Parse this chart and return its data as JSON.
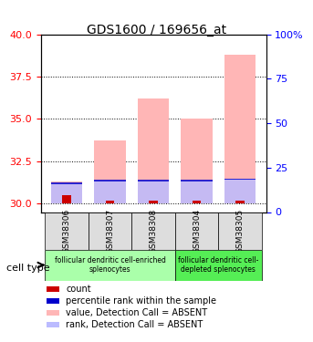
{
  "title": "GDS1600 / 169656_at",
  "samples": [
    "GSM38306",
    "GSM38307",
    "GSM38308",
    "GSM38304",
    "GSM38305"
  ],
  "ylim_left": [
    29.5,
    40
  ],
  "ylim_right": [
    0,
    100
  ],
  "yticks_left": [
    30,
    32.5,
    35,
    37.5,
    40
  ],
  "yticks_right": [
    0,
    25,
    50,
    75,
    100
  ],
  "yticklabels_right": [
    "0",
    "25",
    "50",
    "75",
    "100%"
  ],
  "value_bars": [
    31.3,
    33.7,
    36.2,
    35.0,
    38.8
  ],
  "rank_bars": [
    31.2,
    31.35,
    31.35,
    31.35,
    31.45
  ],
  "count_bars": [
    30.5,
    30.15,
    30.15,
    30.15,
    30.15
  ],
  "blue_rank_bars": [
    31.2,
    31.35,
    31.35,
    31.35,
    31.45
  ],
  "bar_bottom": 30.0,
  "pink_color": "#FFB6B6",
  "lavender_color": "#BBBBFF",
  "red_color": "#CC0000",
  "blue_color": "#0000CC",
  "group1_samples": [
    0,
    1,
    2
  ],
  "group2_samples": [
    3,
    4
  ],
  "group1_label": "follicular dendritic cell-enriched\nsplenocytes",
  "group2_label": "follicular dendritic cell-\ndepleted splenocytes",
  "group1_color": "#AAFFAA",
  "group2_color": "#55EE55",
  "cell_type_label": "cell type",
  "legend_items": [
    {
      "color": "#CC0000",
      "label": "count"
    },
    {
      "color": "#0000CC",
      "label": "percentile rank within the sample"
    },
    {
      "color": "#FFB6B6",
      "label": "value, Detection Call = ABSENT"
    },
    {
      "color": "#BBBBFF",
      "label": "rank, Detection Call = ABSENT"
    }
  ],
  "grid_color": "black",
  "grid_linestyle": "dotted",
  "bar_width": 0.4
}
